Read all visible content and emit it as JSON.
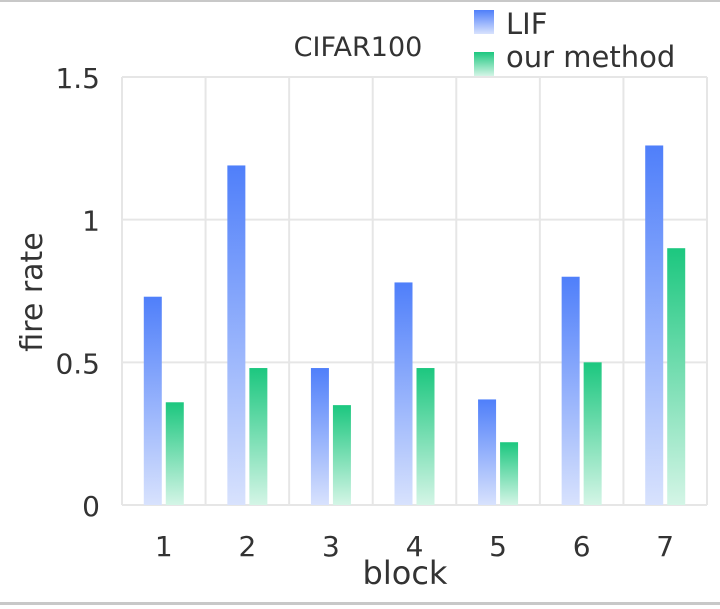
{
  "chart_data": {
    "type": "bar",
    "title": "CIFAR100",
    "xlabel": "block",
    "ylabel": "fire rate",
    "categories": [
      "1",
      "2",
      "3",
      "4",
      "5",
      "6",
      "7"
    ],
    "ylim": [
      0,
      1.5
    ],
    "yticks": [
      0,
      0.5,
      1,
      1.5
    ],
    "ytick_labels": [
      "0",
      "0.5",
      "1",
      "1.5"
    ],
    "grid": true,
    "legend_position": "top-right",
    "series": [
      {
        "name": "LIF",
        "color": "#4f7ffa",
        "values": [
          0.73,
          1.19,
          0.48,
          0.78,
          0.37,
          0.8,
          1.26
        ]
      },
      {
        "name": "our method",
        "color": "#1cc77f",
        "values": [
          0.36,
          0.48,
          0.35,
          0.48,
          0.22,
          0.5,
          0.9
        ]
      }
    ]
  }
}
